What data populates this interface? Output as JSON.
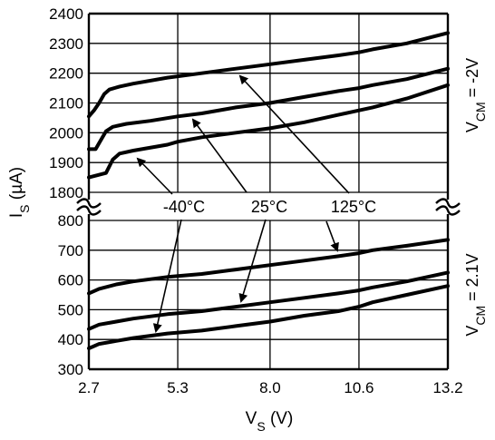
{
  "chart_data": {
    "type": "line",
    "xlabel": "V",
    "xlabel_sub": "S",
    "xlabel_unit": " (V)",
    "ylabel": "I",
    "ylabel_sub": "S",
    "ylabel_unit": " (µA)",
    "xlim": [
      2.7,
      13.2
    ],
    "x_ticks": [
      "2.7",
      "5.3",
      "8.0",
      "10.6",
      "13.2"
    ],
    "x_tick_values": [
      2.7,
      5.3,
      8.0,
      10.6,
      13.2
    ],
    "grid": true,
    "upper_panel": {
      "ylim": [
        1800,
        2400
      ],
      "y_ticks": [
        "1800",
        "1900",
        "2000",
        "2100",
        "2200",
        "2300",
        "2400"
      ],
      "y_tick_values": [
        1800,
        1900,
        2000,
        2100,
        2200,
        2300,
        2400
      ],
      "vcm_label": {
        "main": "V",
        "sub": "CM",
        "rest": " = -2V"
      },
      "series": [
        {
          "name": "125°C",
          "points": [
            [
              2.7,
              2055
            ],
            [
              2.85,
              2075
            ],
            [
              3.0,
              2100
            ],
            [
              3.15,
              2130
            ],
            [
              3.3,
              2145
            ],
            [
              3.6,
              2155
            ],
            [
              4.0,
              2165
            ],
            [
              5.0,
              2185
            ],
            [
              6.0,
              2200
            ],
            [
              7.0,
              2215
            ],
            [
              8.0,
              2230
            ],
            [
              9.0,
              2245
            ],
            [
              10.0,
              2260
            ],
            [
              10.6,
              2270
            ],
            [
              11.0,
              2280
            ],
            [
              12.0,
              2300
            ],
            [
              13.2,
              2335
            ]
          ]
        },
        {
          "name": "25°C",
          "points": [
            [
              2.7,
              1945
            ],
            [
              2.9,
              1945
            ],
            [
              3.05,
              1975
            ],
            [
              3.2,
              2005
            ],
            [
              3.4,
              2020
            ],
            [
              3.8,
              2030
            ],
            [
              4.5,
              2040
            ],
            [
              5.3,
              2055
            ],
            [
              6.0,
              2065
            ],
            [
              7.0,
              2085
            ],
            [
              8.0,
              2100
            ],
            [
              9.0,
              2120
            ],
            [
              10.0,
              2140
            ],
            [
              10.6,
              2150
            ],
            [
              11.0,
              2160
            ],
            [
              12.0,
              2180
            ],
            [
              13.2,
              2215
            ]
          ]
        },
        {
          "name": "-40°C",
          "points": [
            [
              2.7,
              1850
            ],
            [
              3.2,
              1865
            ],
            [
              3.4,
              1910
            ],
            [
              3.6,
              1930
            ],
            [
              4.0,
              1940
            ],
            [
              5.0,
              1960
            ],
            [
              5.3,
              1970
            ],
            [
              6.0,
              1985
            ],
            [
              7.0,
              2000
            ],
            [
              8.0,
              2015
            ],
            [
              9.0,
              2035
            ],
            [
              10.0,
              2060
            ],
            [
              10.6,
              2075
            ],
            [
              11.0,
              2085
            ],
            [
              12.0,
              2115
            ],
            [
              13.2,
              2160
            ]
          ]
        }
      ]
    },
    "lower_panel": {
      "ylim": [
        300,
        800
      ],
      "y_ticks": [
        "300",
        "400",
        "500",
        "600",
        "700",
        "800"
      ],
      "y_tick_values": [
        300,
        400,
        500,
        600,
        700,
        800
      ],
      "vcm_label": {
        "main": "V",
        "sub": "CM",
        "rest": " = 2.1V"
      },
      "series": [
        {
          "name": "125°C",
          "points": [
            [
              2.7,
              555
            ],
            [
              3.0,
              570
            ],
            [
              3.5,
              585
            ],
            [
              4.0,
              595
            ],
            [
              5.0,
              610
            ],
            [
              6.0,
              620
            ],
            [
              7.0,
              635
            ],
            [
              8.0,
              650
            ],
            [
              9.0,
              665
            ],
            [
              10.0,
              680
            ],
            [
              10.6,
              690
            ],
            [
              11.0,
              700
            ],
            [
              12.0,
              715
            ],
            [
              13.2,
              735
            ]
          ]
        },
        {
          "name": "25°C",
          "points": [
            [
              2.7,
              435
            ],
            [
              3.0,
              450
            ],
            [
              3.5,
              460
            ],
            [
              4.0,
              470
            ],
            [
              5.0,
              485
            ],
            [
              6.0,
              495
            ],
            [
              7.0,
              510
            ],
            [
              8.0,
              525
            ],
            [
              9.0,
              540
            ],
            [
              10.0,
              555
            ],
            [
              10.6,
              565
            ],
            [
              11.0,
              575
            ],
            [
              12.0,
              595
            ],
            [
              13.2,
              625
            ]
          ]
        },
        {
          "name": "-40°C",
          "points": [
            [
              2.7,
              370
            ],
            [
              3.0,
              385
            ],
            [
              3.5,
              395
            ],
            [
              4.0,
              405
            ],
            [
              5.0,
              420
            ],
            [
              6.0,
              430
            ],
            [
              7.0,
              445
            ],
            [
              8.0,
              460
            ],
            [
              9.0,
              480
            ],
            [
              10.0,
              495
            ],
            [
              10.6,
              510
            ],
            [
              11.0,
              525
            ],
            [
              12.0,
              550
            ],
            [
              13.2,
              580
            ]
          ]
        }
      ]
    },
    "annotations": {
      "minus40": "-40°C",
      "c25": "25°C",
      "c125": "125°C"
    }
  }
}
